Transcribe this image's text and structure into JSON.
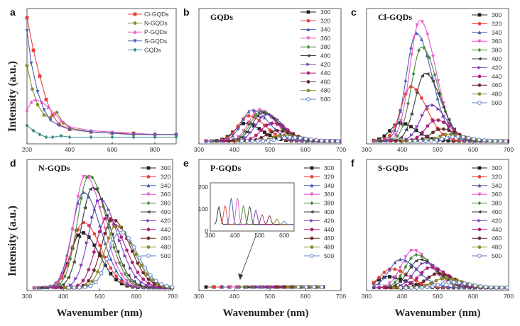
{
  "figure": {
    "y_axis_label": "Intensity (a.u.)",
    "x_axis_label": "Wavenumber (nm)"
  },
  "excitation_legend": [
    "300",
    "320",
    "340",
    "360",
    "380",
    "400",
    "420",
    "440",
    "460",
    "480",
    "500"
  ],
  "colors": {
    "excitation": [
      "#222222",
      "#e8413c",
      "#4c5cb3",
      "#e858c8",
      "#4a8a3c",
      "#3d3d3d",
      "#7a3fb5",
      "#b0207a",
      "#6b2a2a",
      "#8a8a2a",
      "#6080c8"
    ],
    "panel_a": [
      "#e8413c",
      "#8a8a2a",
      "#e858c8",
      "#4c5cb3",
      "#3a8a8a"
    ]
  },
  "chart_data": [
    {
      "panel": "a",
      "type": "line",
      "xlim": [
        200,
        900
      ],
      "xticks": [
        200,
        400,
        600,
        800
      ],
      "series": [
        {
          "name": "Cl-GQDs",
          "x": [
            200,
            230,
            260,
            290,
            320,
            350,
            400,
            500,
            600,
            700,
            800,
            900
          ],
          "values": [
            95,
            70,
            50,
            32,
            20,
            13,
            9,
            7,
            6,
            6,
            5,
            5
          ]
        },
        {
          "name": "N-GQDs",
          "x": [
            200,
            225,
            250,
            280,
            310,
            340,
            370,
            400,
            500,
            600,
            700,
            800,
            900
          ],
          "values": [
            58,
            40,
            28,
            20,
            18,
            22,
            14,
            10,
            7,
            6,
            5,
            5,
            5
          ]
        },
        {
          "name": "P-GQDs",
          "x": [
            200,
            220,
            240,
            270,
            300,
            330,
            360,
            400,
            500,
            600,
            700,
            800,
            900
          ],
          "values": [
            24,
            30,
            32,
            30,
            26,
            21,
            16,
            11,
            8,
            7,
            6,
            5,
            5
          ]
        },
        {
          "name": "S-GQDs",
          "x": [
            200,
            220,
            250,
            280,
            310,
            350,
            400,
            500,
            600,
            700,
            800,
            900
          ],
          "values": [
            85,
            60,
            38,
            24,
            16,
            12,
            9,
            7,
            6,
            5,
            5,
            5
          ]
        },
        {
          "name": "GQDs",
          "x": [
            200,
            230,
            260,
            290,
            320,
            360,
            400,
            500,
            600,
            700,
            800,
            900
          ],
          "values": [
            12,
            8,
            5,
            3,
            3,
            4,
            3,
            3,
            3,
            3,
            3,
            3
          ]
        }
      ]
    },
    {
      "panel": "b",
      "title": "GQDs",
      "type": "line",
      "xlim": [
        300,
        700
      ],
      "xticks": [
        300,
        400,
        500,
        600,
        700
      ],
      "series_peaks": [
        [
          430,
          24
        ],
        [
          440,
          34
        ],
        [
          450,
          42
        ],
        [
          470,
          42
        ],
        [
          475,
          40
        ],
        [
          480,
          38
        ],
        [
          490,
          36
        ],
        [
          505,
          24
        ],
        [
          520,
          14
        ],
        [
          540,
          8
        ],
        [
          555,
          5
        ]
      ]
    },
    {
      "panel": "c",
      "title": "Cl-GQDs",
      "type": "line",
      "xlim": [
        300,
        700
      ],
      "xticks": [
        300,
        400,
        500,
        600,
        700
      ],
      "series_peaks": [
        [
          395,
          24
        ],
        [
          425,
          72
        ],
        [
          440,
          143
        ],
        [
          450,
          160
        ],
        [
          455,
          125
        ],
        [
          465,
          90
        ],
        [
          480,
          48
        ],
        [
          495,
          28
        ],
        [
          510,
          16
        ],
        [
          530,
          9
        ],
        [
          550,
          6
        ]
      ]
    },
    {
      "panel": "d",
      "title": "N-GQDs",
      "type": "line",
      "xlim": [
        300,
        700
      ],
      "xticks": [
        300,
        400,
        500,
        600,
        700
      ],
      "series_peaks": [
        [
          450,
          55
        ],
        [
          455,
          65
        ],
        [
          455,
          95
        ],
        [
          460,
          112
        ],
        [
          470,
          112
        ],
        [
          480,
          100
        ],
        [
          500,
          88
        ],
        [
          520,
          70
        ],
        [
          535,
          68
        ],
        [
          545,
          62
        ],
        [
          555,
          56
        ]
      ]
    },
    {
      "panel": "e",
      "title": "P-GQDs",
      "type": "line",
      "xlim": [
        300,
        700
      ],
      "xticks": [
        300,
        400,
        500,
        600,
        700
      ],
      "inset": {
        "xlim": [
          300,
          640
        ],
        "ylim": [
          0,
          220
        ],
        "xticks": [
          300,
          400,
          500,
          600
        ],
        "yticks": [
          0,
          100,
          200
        ],
        "series_peaks": [
          [
            335,
            110
          ],
          [
            360,
            115
          ],
          [
            385,
            150
          ],
          [
            410,
            150
          ],
          [
            435,
            115
          ],
          [
            460,
            110
          ],
          [
            485,
            95
          ],
          [
            510,
            75
          ],
          [
            540,
            70
          ],
          [
            570,
            55
          ],
          [
            600,
            45
          ]
        ]
      }
    },
    {
      "panel": "f",
      "title": "S-GQDs",
      "type": "line",
      "xlim": [
        300,
        700
      ],
      "xticks": [
        300,
        400,
        500,
        600,
        700
      ],
      "series_peaks": [
        [
          360,
          14
        ],
        [
          370,
          24
        ],
        [
          395,
          36
        ],
        [
          430,
          48
        ],
        [
          440,
          42
        ],
        [
          450,
          36
        ],
        [
          465,
          32
        ],
        [
          480,
          26
        ],
        [
          500,
          18
        ],
        [
          520,
          12
        ],
        [
          540,
          7
        ]
      ]
    }
  ]
}
